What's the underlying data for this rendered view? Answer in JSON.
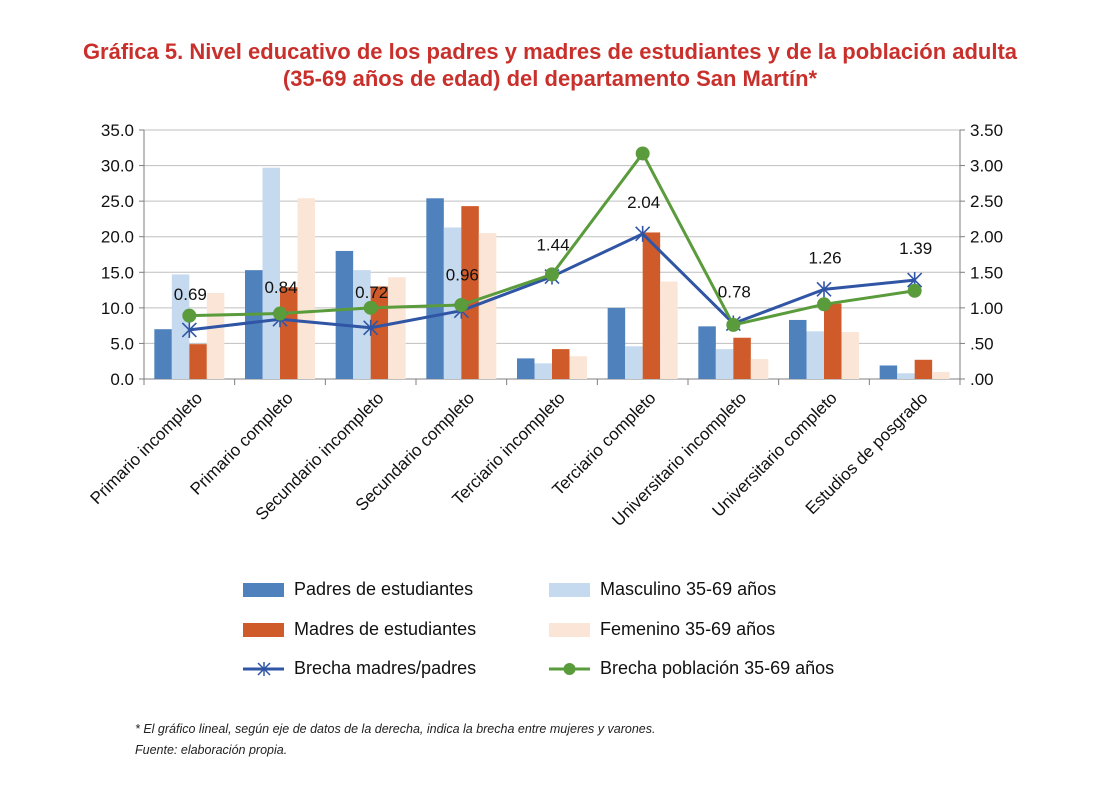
{
  "title_line1": "Gráfica 5. Nivel educativo de los padres y madres de estudiantes y de la población adulta",
  "title_line2": "(35-69 años de edad) del departamento San Martín*",
  "colors": {
    "title": "#c9302c",
    "padres": "#4f81bd",
    "masculino": "#c5d9ef",
    "madres": "#d05b2a",
    "femenino": "#fbe5d6",
    "brecha_mp": "#2f55a4",
    "brecha_pob": "#5a9b3c"
  },
  "chart_data": {
    "type": "bar",
    "categories": [
      "Primario incompleto",
      "Primario completo",
      "Secundario incompleto",
      "Secundario completo",
      "Terciario incompleto",
      "Terciario completo",
      "Universitario incompleto",
      "Universitario completo",
      "Estudios de posgrado"
    ],
    "ylim_left": [
      0,
      35
    ],
    "ylim_right": [
      0,
      3.5
    ],
    "left_ticks": [
      "0.0",
      "5.0",
      "10.0",
      "15.0",
      "20.0",
      "25.0",
      "30.0",
      "35.0"
    ],
    "right_ticks": [
      ".00",
      ".50",
      "1.00",
      "1.50",
      "2.00",
      "2.50",
      "3.00",
      "3.50"
    ],
    "grid": true,
    "legend_position": "bottom",
    "bar_series": [
      {
        "name": "Padres de estudiantes",
        "values": [
          7.0,
          15.3,
          18.0,
          25.4,
          2.9,
          10.0,
          7.4,
          8.3,
          1.9
        ]
      },
      {
        "name": "Masculino 35-69 años",
        "values": [
          14.7,
          29.7,
          15.3,
          21.3,
          2.2,
          4.6,
          4.2,
          6.7,
          0.8
        ]
      },
      {
        "name": "Madres de estudiantes",
        "values": [
          4.9,
          12.9,
          13.0,
          24.3,
          4.2,
          20.6,
          5.8,
          10.6,
          2.7
        ]
      },
      {
        "name": "Femenino 35-69 años",
        "values": [
          12.1,
          25.4,
          14.3,
          20.5,
          3.2,
          13.7,
          2.8,
          6.6,
          1.0
        ]
      }
    ],
    "line_series": [
      {
        "name": "Brecha madres/padres",
        "values": [
          0.69,
          0.84,
          0.72,
          0.96,
          1.44,
          2.04,
          0.78,
          1.26,
          1.39
        ],
        "labels": [
          "0.69",
          "0.84",
          "0.72",
          "0.96",
          "1.44",
          "2.04",
          "0.78",
          "1.26",
          "1.39"
        ]
      },
      {
        "name": "Brecha población 35-69 años",
        "values": [
          0.89,
          0.92,
          1.0,
          1.04,
          1.47,
          3.17,
          0.76,
          1.05,
          1.24
        ]
      }
    ]
  },
  "notes": [
    "* El gráfico lineal, según eje de datos de la derecha, indica la brecha entre mujeres y varones.",
    "Fuente: elaboración propia."
  ]
}
